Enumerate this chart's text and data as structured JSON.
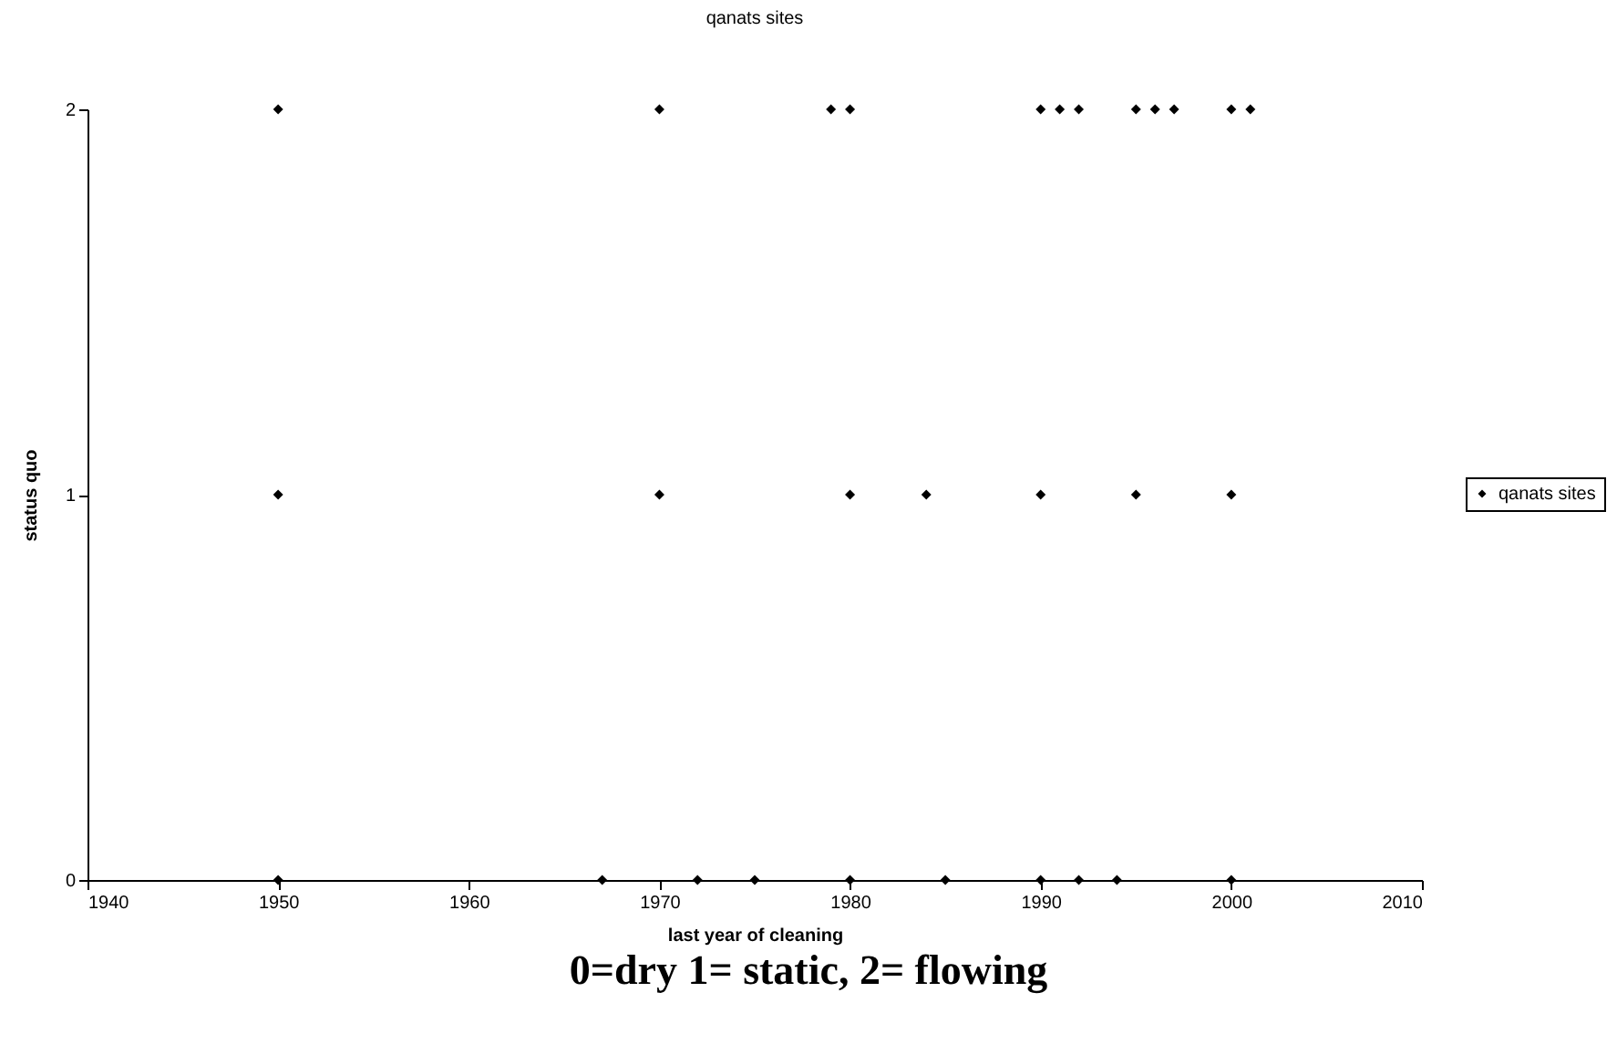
{
  "chart_data": {
    "type": "scatter",
    "title": "qanats sites",
    "xlabel": "last year of cleaning",
    "ylabel": "status quo",
    "annotations": [
      "0=dry 1= static, 2= flowing"
    ],
    "x": [
      1950,
      1970,
      1979,
      1980,
      1990,
      1991,
      1992,
      1995,
      1996,
      1997,
      2000,
      2001,
      1950,
      1970,
      1980,
      1984,
      1990,
      1995,
      2000,
      1950,
      1967,
      1972,
      1975,
      1980,
      1985,
      1990,
      1992,
      1994,
      2000
    ],
    "series": [
      {
        "name": "qanats sites",
        "color": "#000000",
        "values": [
          2,
          2,
          2,
          2,
          2,
          2,
          2,
          2,
          2,
          2,
          2,
          2,
          1,
          1,
          1,
          1,
          1,
          1,
          1,
          0,
          0,
          0,
          0,
          0,
          0,
          0,
          0,
          0,
          0
        ]
      }
    ],
    "xlim": [
      1940,
      2010
    ],
    "xticks": [
      1940,
      1950,
      1960,
      1970,
      1980,
      1990,
      2000,
      2010
    ],
    "ylim": [
      0,
      2
    ],
    "yticks": [
      0,
      1,
      2
    ],
    "grid": false,
    "legend": "right",
    "marker": "diamond"
  }
}
